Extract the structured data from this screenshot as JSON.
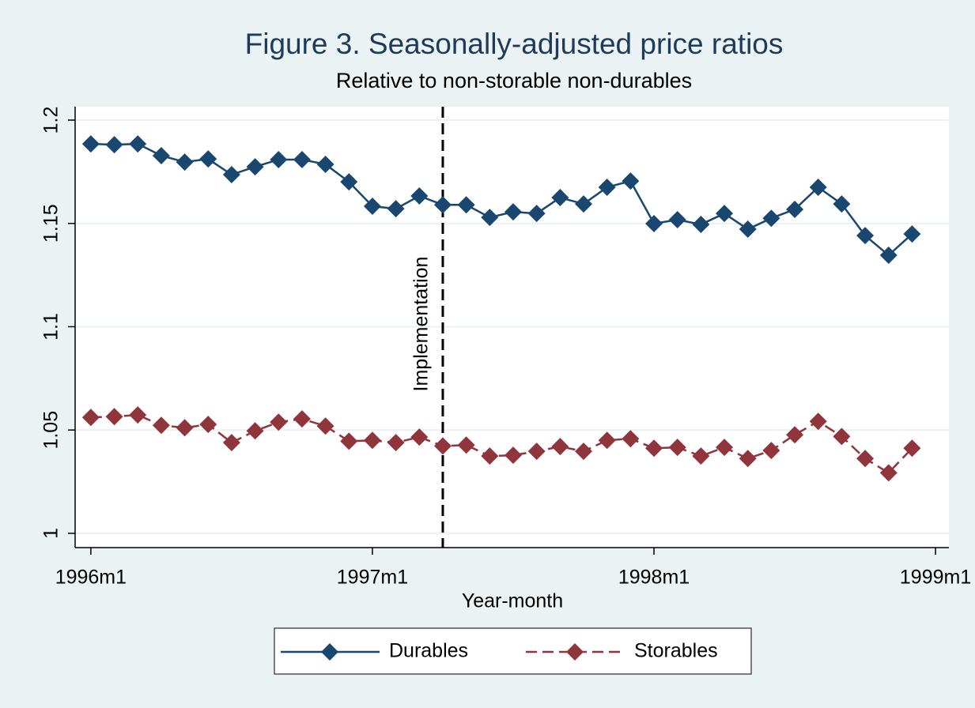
{
  "chart_data": {
    "type": "line",
    "title": "Figure 3. Seasonally-adjusted price ratios",
    "subtitle": "Relative to non-storable non-durables",
    "xlabel": "Year-month",
    "x": [
      432,
      433,
      434,
      435,
      436,
      437,
      438,
      439,
      440,
      441,
      442,
      443,
      444,
      445,
      446,
      447,
      448,
      449,
      450,
      451,
      452,
      453,
      454,
      455,
      456,
      457,
      458,
      459,
      460,
      461,
      462,
      463,
      464,
      465,
      466,
      467
    ],
    "xlim": [
      431.33,
      468.57
    ],
    "xticks": [
      {
        "value": 432,
        "label": "1996m1"
      },
      {
        "value": 444,
        "label": "1997m1"
      },
      {
        "value": 456,
        "label": "1998m1"
      },
      {
        "value": 468,
        "label": "1999m1"
      }
    ],
    "ylim": [
      0.9931,
      1.2065
    ],
    "yticks": [
      1,
      1.05,
      1.1,
      1.15,
      1.2
    ],
    "grid": true,
    "vline": {
      "x": 447,
      "label": "Implementation"
    },
    "series": [
      {
        "name": "Durables",
        "color": "#1a476f",
        "dash": false,
        "values": [
          1.1885,
          1.1881,
          1.1885,
          1.1828,
          1.1797,
          1.1812,
          1.1736,
          1.1774,
          1.1809,
          1.1809,
          1.1786,
          1.1701,
          1.1583,
          1.1571,
          1.1633,
          1.159,
          1.159,
          1.1529,
          1.1556,
          1.1548,
          1.1625,
          1.1594,
          1.1675,
          1.1705,
          1.1499,
          1.1518,
          1.1495,
          1.1548,
          1.1472,
          1.1525,
          1.1568,
          1.1675,
          1.1594,
          1.1441,
          1.1346,
          1.1449
        ]
      },
      {
        "name": "Storables",
        "color": "#90353b",
        "dash": true,
        "values": [
          1.0561,
          1.0565,
          1.0573,
          1.0523,
          1.0511,
          1.0527,
          1.0439,
          1.0496,
          1.0538,
          1.0554,
          1.0519,
          1.0446,
          1.045,
          1.0439,
          1.0466,
          1.0423,
          1.0427,
          1.0374,
          1.0378,
          1.0397,
          1.042,
          1.0397,
          1.045,
          1.0458,
          1.0412,
          1.0416,
          1.0374,
          1.0416,
          1.0362,
          1.0401,
          1.0477,
          1.0542,
          1.0469,
          1.0362,
          1.0293,
          1.0412
        ]
      }
    ]
  }
}
